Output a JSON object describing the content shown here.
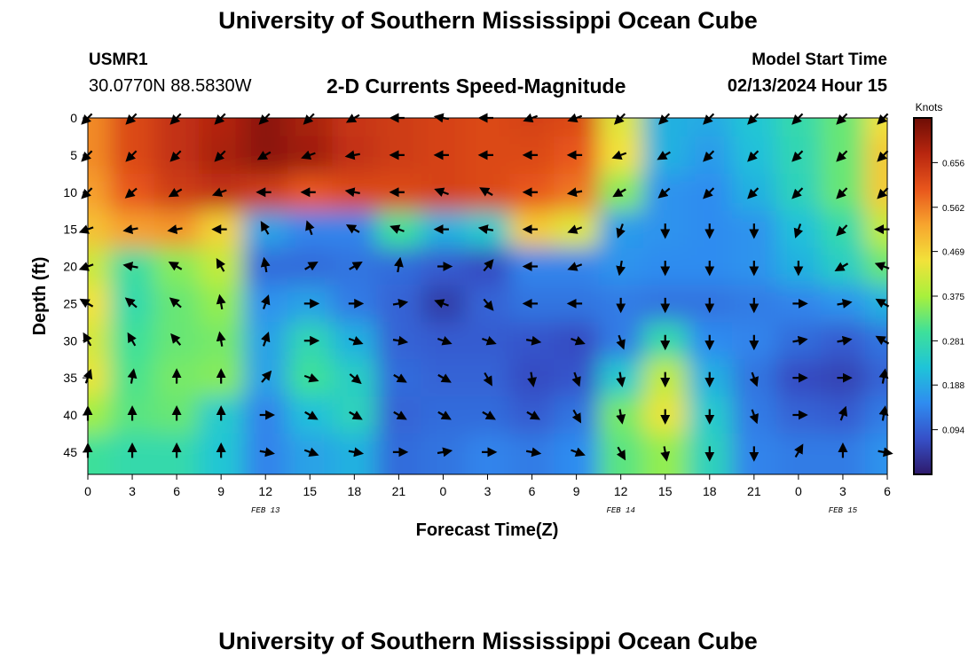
{
  "header": {
    "title": "University of Southern Mississippi Ocean Cube",
    "station_id": "USMR1",
    "coordinates": "30.0770N  88.5830W",
    "subtitle": "2-D Currents Speed-Magnitude",
    "model_start_label": "Model Start Time",
    "model_start_value": "02/13/2024 Hour 15"
  },
  "footer": {
    "title": "University of Southern Mississippi Ocean Cube"
  },
  "chart_data": {
    "type": "heatmap",
    "title": "2-D Currents Speed-Magnitude",
    "xlabel": "Forecast Time(Z)",
    "ylabel": "Depth (ft)",
    "x_tick_labels": [
      "0",
      "3",
      "6",
      "9",
      "12",
      "15",
      "18",
      "21",
      "0",
      "3",
      "6",
      "9",
      "12",
      "15",
      "18",
      "21",
      "0",
      "3",
      "6"
    ],
    "date_labels": [
      {
        "text": "FEB 13",
        "at_tick": 4
      },
      {
        "text": "FEB 14",
        "at_tick": 12
      },
      {
        "text": "FEB 15",
        "at_tick": 17
      }
    ],
    "y_ticks": [
      0,
      5,
      10,
      15,
      20,
      25,
      30,
      35,
      40,
      45
    ],
    "ylim": [
      0,
      48
    ],
    "y_inverted": true,
    "colorbar": {
      "label": "Knots",
      "ticks": [
        "0.094",
        "0.188",
        "0.281",
        "0.375",
        "0.469",
        "0.562",
        "0.656"
      ],
      "tick_values": [
        0.094,
        0.188,
        0.281,
        0.375,
        0.469,
        0.562,
        0.656
      ],
      "range": [
        0.0,
        0.75
      ],
      "colors": [
        "#2e1a6b",
        "#3650c8",
        "#2f8cf0",
        "#1fc4d8",
        "#3ee09a",
        "#a8f03c",
        "#f2e23a",
        "#f7a52e",
        "#e8561c",
        "#b8260f",
        "#6e0d05"
      ]
    },
    "speed_grid_depths_ft": [
      0,
      5,
      10,
      15,
      20,
      25,
      30,
      35,
      40,
      45
    ],
    "speed_grid_knots": [
      [
        0.55,
        0.62,
        0.66,
        0.68,
        0.72,
        0.69,
        0.65,
        0.64,
        0.63,
        0.62,
        0.63,
        0.62,
        0.43,
        0.2,
        0.19,
        0.23,
        0.28,
        0.33,
        0.45
      ],
      [
        0.55,
        0.62,
        0.66,
        0.69,
        0.72,
        0.7,
        0.66,
        0.64,
        0.63,
        0.62,
        0.62,
        0.6,
        0.45,
        0.2,
        0.17,
        0.22,
        0.27,
        0.33,
        0.48
      ],
      [
        0.53,
        0.6,
        0.64,
        0.66,
        0.64,
        0.6,
        0.62,
        0.62,
        0.63,
        0.62,
        0.6,
        0.57,
        0.35,
        0.16,
        0.15,
        0.2,
        0.26,
        0.33,
        0.48
      ],
      [
        0.49,
        0.53,
        0.54,
        0.47,
        0.18,
        0.14,
        0.14,
        0.3,
        0.2,
        0.24,
        0.48,
        0.43,
        0.17,
        0.16,
        0.15,
        0.16,
        0.22,
        0.28,
        0.4
      ],
      [
        0.41,
        0.29,
        0.35,
        0.4,
        0.11,
        0.11,
        0.12,
        0.11,
        0.09,
        0.07,
        0.14,
        0.14,
        0.16,
        0.15,
        0.15,
        0.16,
        0.2,
        0.25,
        0.33
      ],
      [
        0.45,
        0.28,
        0.33,
        0.36,
        0.16,
        0.18,
        0.13,
        0.1,
        0.05,
        0.1,
        0.12,
        0.12,
        0.13,
        0.12,
        0.12,
        0.13,
        0.14,
        0.16,
        0.2
      ],
      [
        0.42,
        0.3,
        0.33,
        0.34,
        0.18,
        0.27,
        0.2,
        0.1,
        0.09,
        0.09,
        0.08,
        0.07,
        0.13,
        0.28,
        0.15,
        0.14,
        0.11,
        0.09,
        0.12
      ],
      [
        0.44,
        0.31,
        0.34,
        0.35,
        0.18,
        0.3,
        0.25,
        0.11,
        0.1,
        0.1,
        0.07,
        0.08,
        0.24,
        0.4,
        0.2,
        0.12,
        0.07,
        0.06,
        0.1
      ],
      [
        0.37,
        0.32,
        0.33,
        0.24,
        0.14,
        0.22,
        0.26,
        0.1,
        0.11,
        0.11,
        0.09,
        0.12,
        0.34,
        0.44,
        0.24,
        0.13,
        0.1,
        0.09,
        0.13
      ],
      [
        0.3,
        0.28,
        0.28,
        0.23,
        0.14,
        0.18,
        0.2,
        0.11,
        0.12,
        0.14,
        0.13,
        0.15,
        0.32,
        0.36,
        0.26,
        0.14,
        0.13,
        0.13,
        0.16
      ]
    ],
    "direction_grid_deg": [
      [
        225,
        225,
        225,
        225,
        225,
        225,
        240,
        270,
        280,
        270,
        250,
        250,
        225,
        225,
        225,
        225,
        225,
        225,
        225
      ],
      [
        225,
        225,
        225,
        225,
        240,
        250,
        260,
        270,
        270,
        270,
        270,
        270,
        250,
        240,
        225,
        225,
        225,
        225,
        225
      ],
      [
        225,
        230,
        240,
        250,
        270,
        270,
        280,
        270,
        290,
        300,
        270,
        260,
        240,
        230,
        225,
        225,
        225,
        225,
        225
      ],
      [
        250,
        260,
        260,
        270,
        330,
        340,
        300,
        290,
        270,
        280,
        270,
        250,
        200,
        180,
        180,
        180,
        200,
        225,
        270
      ],
      [
        250,
        280,
        300,
        330,
        350,
        60,
        60,
        10,
        90,
        40,
        270,
        250,
        190,
        180,
        180,
        180,
        180,
        240,
        290
      ],
      [
        300,
        310,
        310,
        350,
        20,
        90,
        90,
        80,
        290,
        140,
        270,
        270,
        180,
        180,
        180,
        180,
        90,
        80,
        300
      ],
      [
        330,
        330,
        320,
        350,
        20,
        90,
        110,
        100,
        110,
        110,
        100,
        110,
        160,
        180,
        180,
        180,
        80,
        80,
        300
      ],
      [
        20,
        10,
        0,
        0,
        40,
        110,
        130,
        120,
        120,
        150,
        170,
        160,
        170,
        180,
        180,
        160,
        90,
        90,
        10
      ],
      [
        0,
        0,
        0,
        0,
        90,
        120,
        120,
        120,
        120,
        120,
        120,
        150,
        170,
        180,
        180,
        160,
        90,
        20,
        10
      ],
      [
        0,
        0,
        0,
        0,
        100,
        110,
        100,
        90,
        80,
        90,
        100,
        110,
        150,
        170,
        180,
        180,
        30,
        0,
        100
      ]
    ]
  }
}
